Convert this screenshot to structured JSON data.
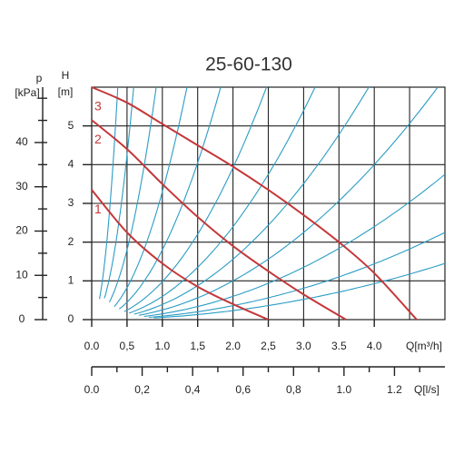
{
  "chart_data": {
    "type": "line",
    "title": "25-60-130",
    "y_label": "H",
    "y_unit": "[m]",
    "p_label": "p",
    "p_unit": "[kPa]",
    "x_label": "Q[m³/h]",
    "x2_label": "Q[l/s]",
    "xlim": [
      0,
      5
    ],
    "ylim": [
      0,
      6
    ],
    "xticks": [
      {
        "value": 0,
        "label": "0.0"
      },
      {
        "value": 0.5,
        "label": "0,5"
      },
      {
        "value": 1,
        "label": "1.0"
      },
      {
        "value": 1.5,
        "label": "1,5"
      },
      {
        "value": 2,
        "label": "2.0"
      },
      {
        "value": 2.5,
        "label": "2,5"
      },
      {
        "value": 3,
        "label": "3.0"
      },
      {
        "value": 3.5,
        "label": "3.5"
      },
      {
        "value": 4,
        "label": "4.0"
      }
    ],
    "x_grid_extra": [
      4.5
    ],
    "yticks": [
      0,
      1,
      2,
      3,
      4,
      5
    ],
    "p_lim": [
      0,
      52.5
    ],
    "p_ticks": [
      0,
      10,
      20,
      30,
      40
    ],
    "p_minor_ticks": [
      5,
      15,
      25,
      35,
      45,
      50
    ],
    "x2lim": [
      0,
      1.4
    ],
    "x2ticks": [
      {
        "value": 0,
        "label": "0.0"
      },
      {
        "value": 0.2,
        "label": "0,2"
      },
      {
        "value": 0.4,
        "label": "0,4"
      },
      {
        "value": 0.6,
        "label": "0,6"
      },
      {
        "value": 0.8,
        "label": "0,8"
      },
      {
        "value": 1,
        "label": "1.0"
      },
      {
        "value": 1.2,
        "label": "1.2"
      }
    ],
    "x2_minor_ticks": [
      0.1,
      0.3,
      0.5,
      0.7,
      0.9,
      1.1,
      1.3
    ],
    "series": [
      {
        "name": "1",
        "color": "#c4383a",
        "x": [
          0,
          0.5,
          1,
          1.5,
          2,
          2.5
        ],
        "values": [
          3.35,
          2.25,
          1.45,
          0.85,
          0.4,
          0
        ]
      },
      {
        "name": "2",
        "color": "#c4383a",
        "x": [
          0,
          0.5,
          1,
          1.5,
          2,
          2.5,
          3,
          3.6
        ],
        "values": [
          5.15,
          4.4,
          3.5,
          2.65,
          1.9,
          1.25,
          0.65,
          0
        ]
      },
      {
        "name": "3",
        "color": "#c4383a",
        "x": [
          0,
          0.5,
          1,
          1.5,
          2,
          2.5,
          3,
          3.5,
          4,
          4.6
        ],
        "values": [
          6,
          5.6,
          5.05,
          4.5,
          3.95,
          3.35,
          2.7,
          2,
          1.2,
          0
        ]
      }
    ],
    "system_curves": {
      "color": "#2b9cc3",
      "coefficients": [
        44,
        17,
        7.2,
        3.3,
        1.8,
        0.98,
        0.6,
        0.39,
        0.25,
        0.15,
        0.09,
        0.058
      ]
    }
  }
}
